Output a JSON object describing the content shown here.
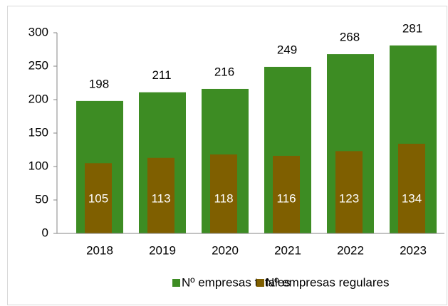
{
  "chart_data": {
    "type": "bar",
    "categories": [
      "2018",
      "2019",
      "2020",
      "2021",
      "2022",
      "2023"
    ],
    "series": [
      {
        "name": "Nº empresas totales",
        "color": "#3d8c23",
        "values": [
          198,
          211,
          216,
          249,
          268,
          281
        ]
      },
      {
        "name": "Nº empresas regulares",
        "color": "#7f5f00",
        "values": [
          105,
          113,
          118,
          116,
          123,
          134
        ]
      }
    ],
    "ylim": [
      0,
      300
    ],
    "yticks": [
      0,
      50,
      100,
      150,
      200,
      250,
      300
    ],
    "legend": "bottom"
  }
}
